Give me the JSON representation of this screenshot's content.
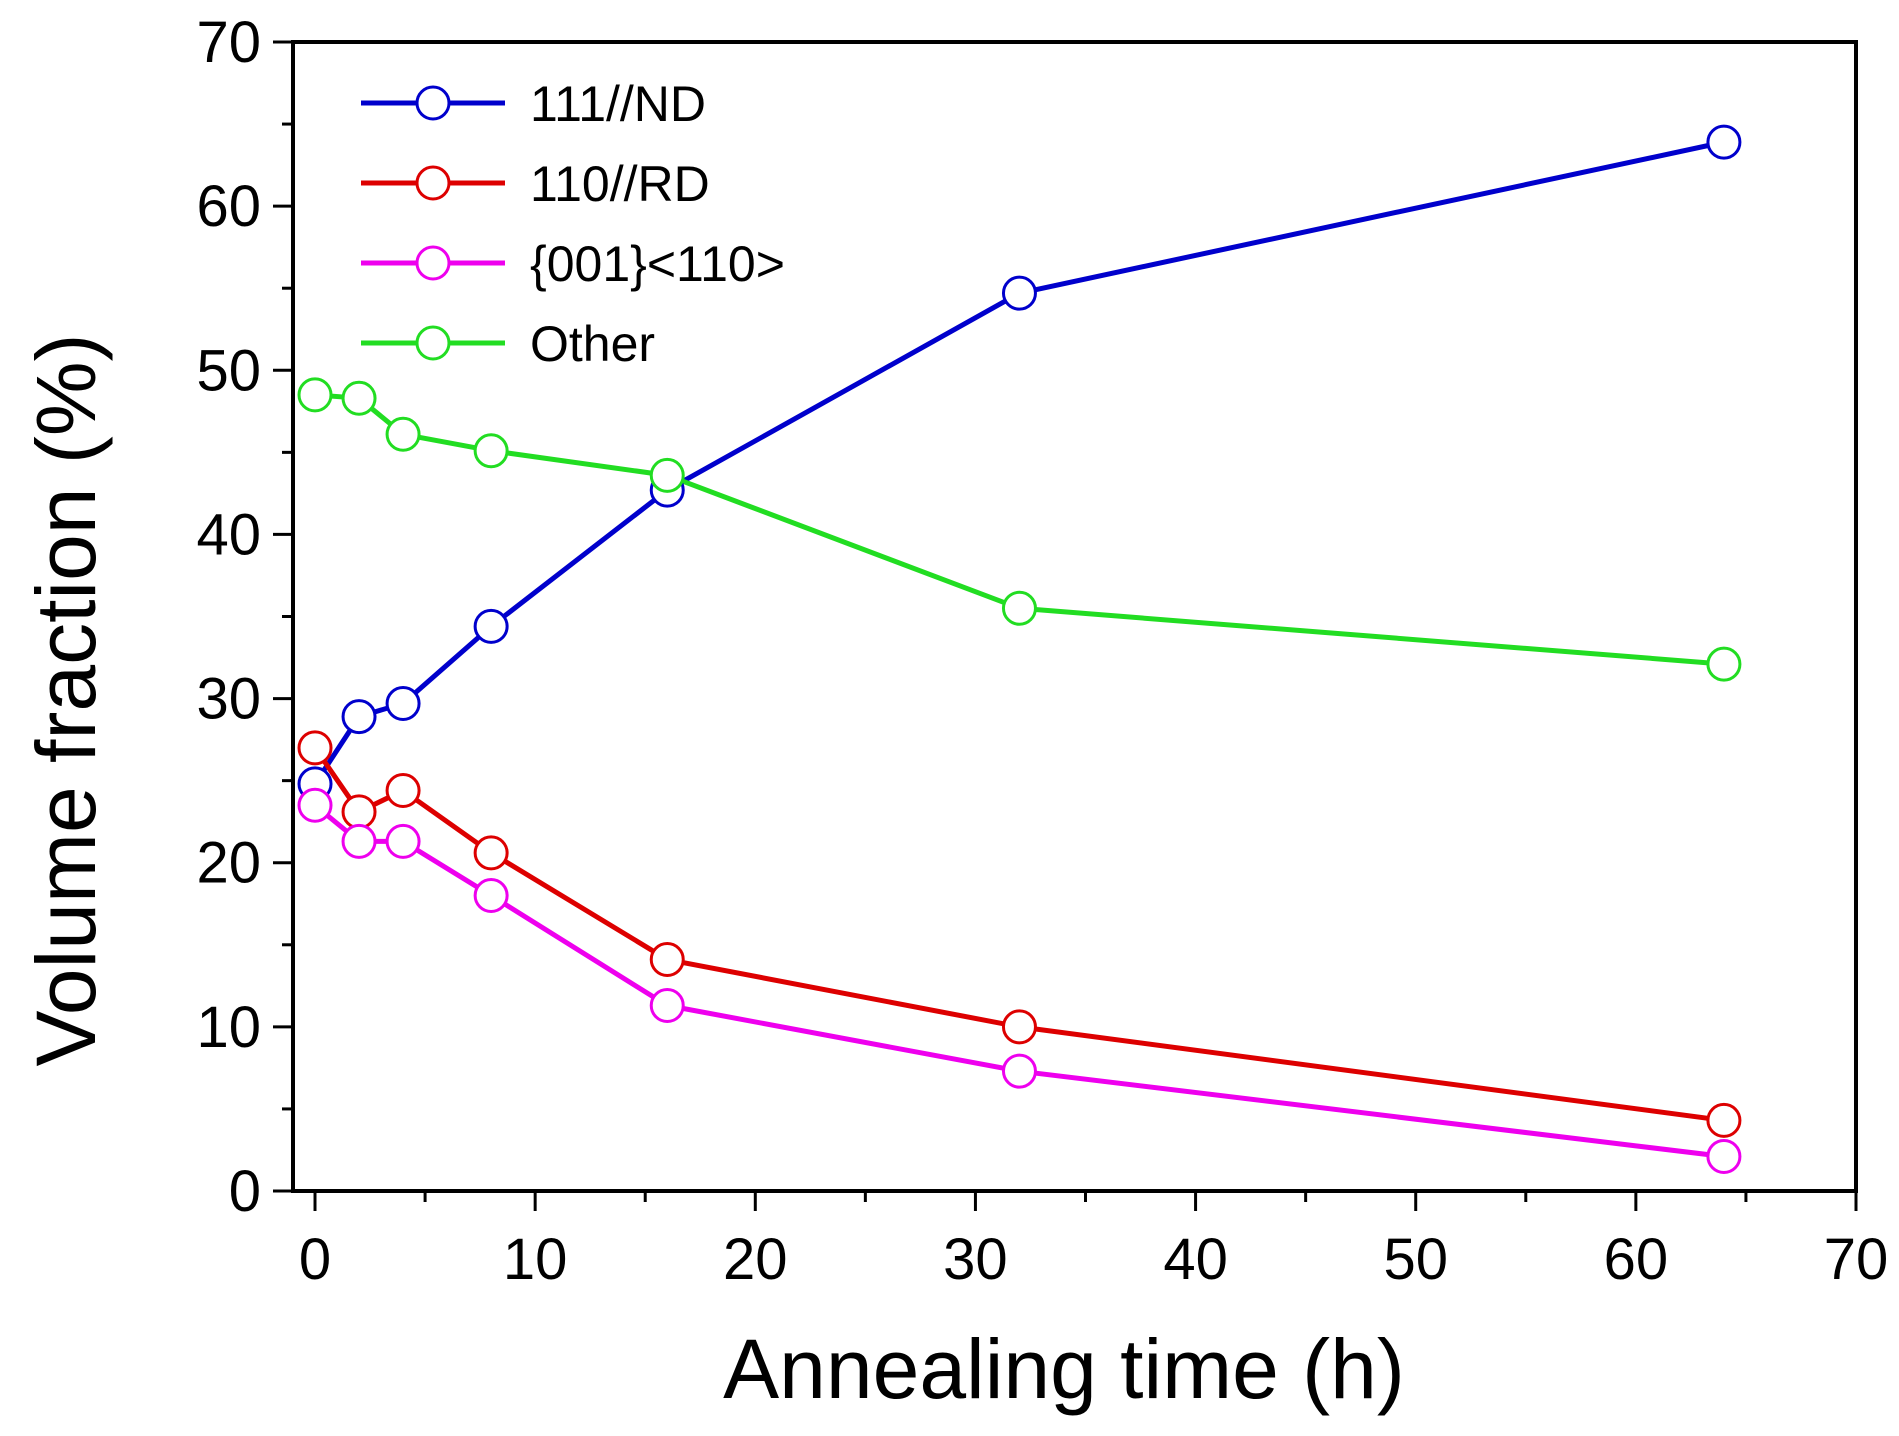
{
  "chart_data": {
    "type": "line",
    "title": "",
    "xlabel": "Annealing time (h)",
    "ylabel": "Volume fraction (%)",
    "xlim": [
      -1,
      70
    ],
    "ylim": [
      0,
      70
    ],
    "x_ticks": [
      0,
      10,
      20,
      30,
      40,
      50,
      60,
      70
    ],
    "y_ticks": [
      0,
      10,
      20,
      30,
      40,
      50,
      60,
      70
    ],
    "x_tick_labels": [
      "0",
      "10",
      "20",
      "30",
      "40",
      "50",
      "60",
      "70"
    ],
    "y_tick_labels": [
      "0",
      "10",
      "20",
      "30",
      "40",
      "50",
      "60",
      "70"
    ],
    "grid": false,
    "legend_position": "top-left",
    "marker": "open-circle",
    "x": [
      0,
      2,
      4,
      8,
      16,
      32,
      64
    ],
    "series": [
      {
        "name": "111//ND",
        "color": "#0000cc",
        "values": [
          24.8,
          28.9,
          29.7,
          34.4,
          42.7,
          54.7,
          63.9
        ]
      },
      {
        "name": "110//RD",
        "color": "#dd0000",
        "values": [
          27.0,
          23.1,
          24.4,
          20.6,
          14.1,
          10.0,
          4.3
        ]
      },
      {
        "name": "{001}<110>",
        "color": "#ee00ee",
        "values": [
          23.5,
          21.3,
          21.3,
          18.0,
          11.3,
          7.3,
          2.1
        ]
      },
      {
        "name": "Other",
        "color": "#22dd22",
        "values": [
          48.5,
          48.3,
          46.1,
          45.1,
          43.6,
          35.5,
          32.1
        ]
      }
    ]
  }
}
